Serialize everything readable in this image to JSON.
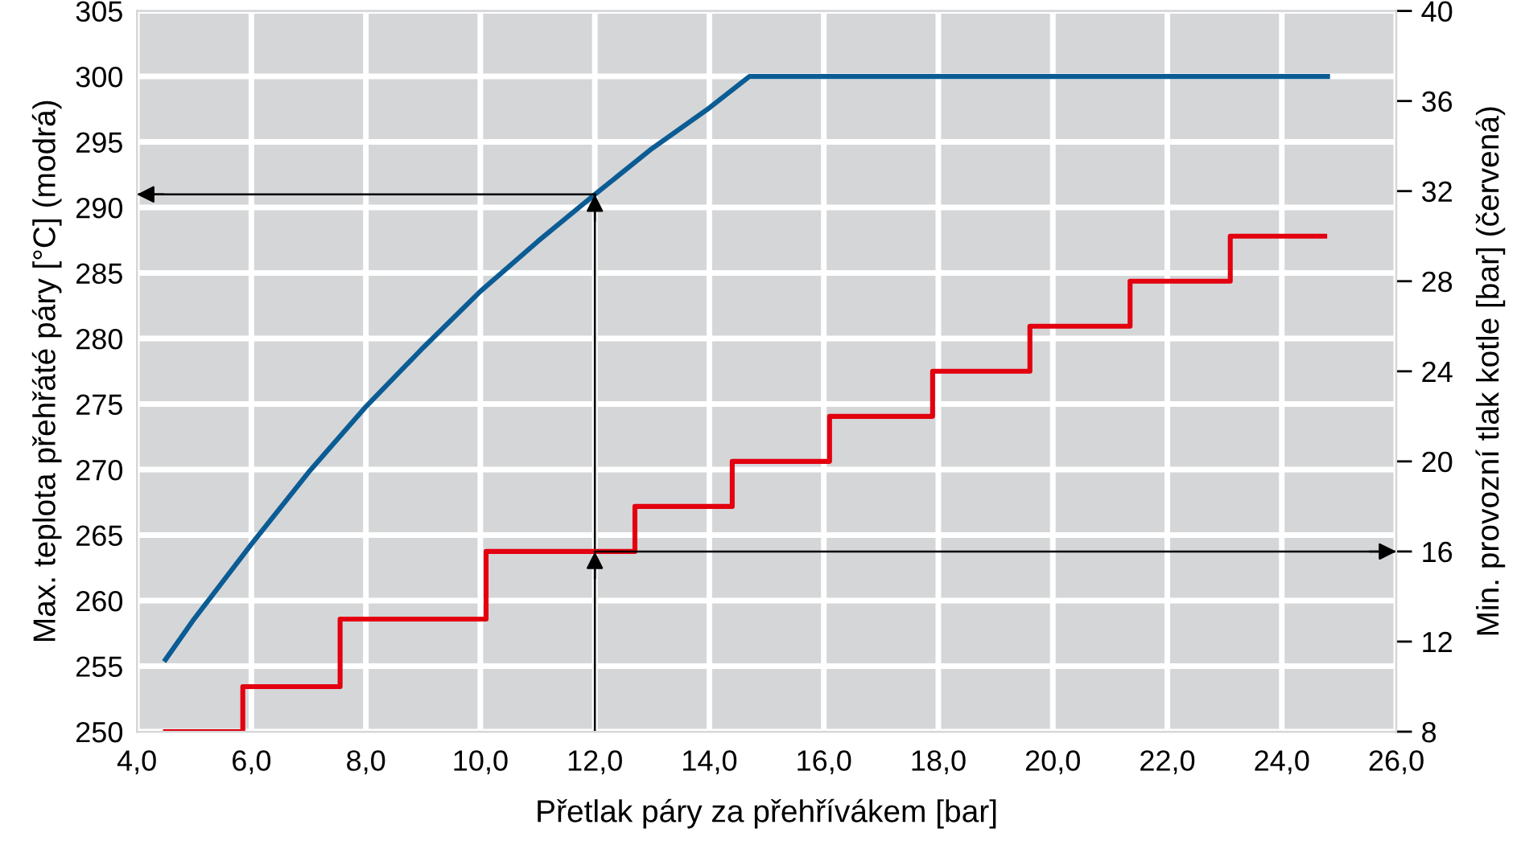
{
  "chart_data": {
    "type": "line",
    "xlabel": "Přetlak páry za přehřívákem [bar]",
    "ylabel": "Max. teplota přehřáté páry [°C] (modrá)",
    "y2label": "Min. provozní tlak kotle [bar] (červená)",
    "series": [
      {
        "color": "#0b5c94",
        "x": [
          4.5,
          5.0,
          6.0,
          7.0,
          8.0,
          9.0,
          10.0,
          11.0,
          12.0,
          13.0,
          14.0,
          14.7,
          24.8
        ],
        "values": [
          255.5,
          258.6,
          264.3,
          269.8,
          274.8,
          279.3,
          283.6,
          287.4,
          291.0,
          294.5,
          297.6,
          300.0,
          300.0
        ]
      },
      {
        "type": "step",
        "axis": "y2",
        "color": "#e3000f",
        "x": [
          4.5,
          5.85,
          7.55,
          10.1,
          12.7,
          14.4,
          16.1,
          17.9,
          19.6,
          21.35,
          23.1,
          24.75
        ],
        "values": [
          8,
          10,
          13,
          16,
          18,
          20,
          22,
          24,
          26,
          28,
          30,
          30
        ]
      }
    ],
    "ref_lines": [
      {
        "axis": "x",
        "value": 12.0,
        "color": "#000000",
        "line_style": "solid"
      },
      {
        "axis": "y",
        "value": 291,
        "color": "#000000",
        "line_style": "solid"
      },
      {
        "axis": "y2",
        "value": 16,
        "color": "#000000",
        "line_style": "solid"
      }
    ],
    "xlim": [
      4.0,
      26.0
    ],
    "xticks": [
      {
        "value": 4,
        "label": "4,0"
      },
      {
        "value": 6,
        "label": "6,0"
      },
      {
        "value": 8,
        "label": "8,0"
      },
      {
        "value": 10,
        "label": "10,0"
      },
      {
        "value": 12,
        "label": "12,0"
      },
      {
        "value": 14,
        "label": "14,0"
      },
      {
        "value": 16,
        "label": "16,0"
      },
      {
        "value": 18,
        "label": "18,0"
      },
      {
        "value": 20,
        "label": "20,0"
      },
      {
        "value": 22,
        "label": "22,0"
      },
      {
        "value": 24,
        "label": "24,0"
      },
      {
        "value": 26,
        "label": "26,0"
      }
    ],
    "ylim": [
      250,
      305
    ],
    "yticks": [
      250,
      255,
      260,
      265,
      270,
      275,
      280,
      285,
      290,
      295,
      300,
      305
    ],
    "y2lim": [
      8,
      40
    ],
    "y2ticks": [
      8,
      12,
      16,
      20,
      24,
      28,
      32,
      36,
      40
    ],
    "grid": true,
    "marker": "none",
    "line_style": "solid"
  }
}
